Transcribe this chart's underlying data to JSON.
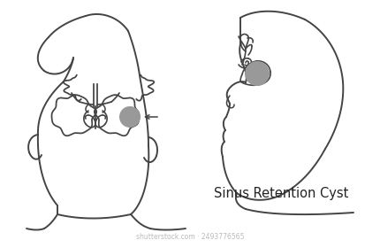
{
  "title": "Sinus Retention Cyst",
  "title_fontsize": 10.5,
  "line_color": "#444444",
  "line_width": 1.4,
  "cyst_color": "#999999",
  "bg_color": "#ffffff"
}
